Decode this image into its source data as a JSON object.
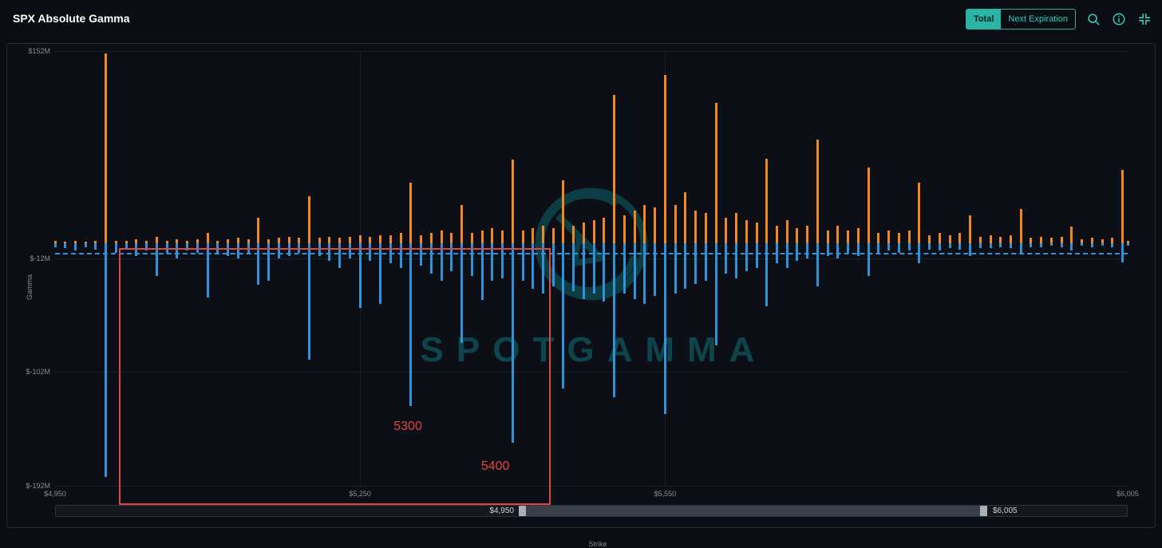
{
  "header": {
    "title": "SPX Absolute Gamma",
    "toggle": {
      "options": [
        "Total",
        "Next Expiration"
      ],
      "active": "Total"
    },
    "icons": [
      "search-icon",
      "info-icon",
      "collapse-icon"
    ],
    "accent_color": "#2bb3a3"
  },
  "watermark": {
    "text": "SPOTGAMMA",
    "color": "#0e454d"
  },
  "annotation": {
    "color": "#e04545",
    "x1_strike": 5013,
    "x2_strike": 5434,
    "top_value": -4,
    "labels": [
      {
        "text": "5300",
        "strike": 5297,
        "value": -145
      },
      {
        "text": "5400",
        "strike": 5383,
        "value": -177
      }
    ]
  },
  "scrollbar": {
    "left_label": "$4,950",
    "right_label": "$6,005"
  },
  "chart_data": {
    "type": "bar",
    "title": "SPX Absolute Gamma",
    "xlabel": "Strike",
    "ylabel": "Gamma",
    "xlim": [
      4950,
      6005
    ],
    "ylim": [
      -192,
      152
    ],
    "grid": true,
    "y_ticks": [
      {
        "label": "$152M",
        "value": 152
      },
      {
        "label": "$-12M",
        "value": -12
      },
      {
        "label": "$-102M",
        "value": -102
      },
      {
        "label": "$-192M",
        "value": -192
      }
    ],
    "x_ticks": [
      {
        "label": "$4,950",
        "value": 4950,
        "grid": false
      },
      {
        "label": "$5,250",
        "value": 5250,
        "grid": true
      },
      {
        "label": "$5,550",
        "value": 5550,
        "grid": true
      },
      {
        "label": "$6,005",
        "value": 6005,
        "grid": false
      }
    ],
    "reference_line": {
      "value": -8,
      "color": "#2e93d9"
    },
    "categories": [
      4950,
      4960,
      4970,
      4980,
      4990,
      5000,
      5010,
      5020,
      5030,
      5040,
      5050,
      5060,
      5070,
      5080,
      5090,
      5100,
      5110,
      5120,
      5130,
      5140,
      5150,
      5160,
      5170,
      5180,
      5190,
      5200,
      5210,
      5220,
      5230,
      5240,
      5250,
      5260,
      5270,
      5280,
      5290,
      5300,
      5310,
      5320,
      5330,
      5340,
      5350,
      5360,
      5370,
      5380,
      5390,
      5400,
      5410,
      5420,
      5430,
      5440,
      5450,
      5460,
      5470,
      5480,
      5490,
      5500,
      5510,
      5520,
      5530,
      5540,
      5550,
      5560,
      5570,
      5580,
      5590,
      5600,
      5610,
      5620,
      5630,
      5640,
      5650,
      5660,
      5670,
      5680,
      5690,
      5700,
      5710,
      5720,
      5730,
      5740,
      5750,
      5760,
      5770,
      5780,
      5790,
      5800,
      5810,
      5820,
      5830,
      5840,
      5850,
      5860,
      5870,
      5880,
      5890,
      5900,
      5910,
      5920,
      5930,
      5940,
      5950,
      5960,
      5970,
      5980,
      5990,
      6000,
      6005
    ],
    "series": [
      {
        "name": "Call Gamma",
        "color": "#f5871f",
        "values": [
          2,
          1,
          2,
          1,
          2,
          150,
          2,
          2,
          3,
          2,
          5,
          2,
          3,
          2,
          3,
          8,
          2,
          3,
          4,
          3,
          20,
          3,
          4,
          5,
          4,
          37,
          4,
          5,
          4,
          5,
          6,
          5,
          6,
          6,
          8,
          48,
          6,
          8,
          10,
          8,
          30,
          8,
          10,
          12,
          10,
          66,
          10,
          12,
          14,
          12,
          50,
          14,
          16,
          18,
          20,
          117,
          22,
          26,
          30,
          28,
          133,
          30,
          40,
          26,
          24,
          111,
          20,
          24,
          18,
          16,
          67,
          14,
          18,
          12,
          14,
          82,
          10,
          14,
          10,
          12,
          60,
          8,
          10,
          8,
          10,
          48,
          6,
          8,
          6,
          8,
          22,
          5,
          6,
          5,
          6,
          27,
          4,
          5,
          4,
          5,
          13,
          3,
          4,
          3,
          4,
          58,
          2
        ]
      },
      {
        "name": "Put Gamma",
        "color": "#2e93d9",
        "values": [
          -3,
          -4,
          -6,
          -3,
          -5,
          -185,
          -8,
          -5,
          -10,
          -6,
          -26,
          -8,
          -12,
          -6,
          -8,
          -43,
          -8,
          -10,
          -12,
          -8,
          -33,
          -30,
          -12,
          -10,
          -8,
          -92,
          -10,
          -14,
          -20,
          -12,
          -51,
          -14,
          -48,
          -16,
          -20,
          -129,
          -18,
          -24,
          -30,
          -22,
          -79,
          -26,
          -45,
          -30,
          -28,
          -158,
          -30,
          -36,
          -40,
          -34,
          -115,
          -38,
          -44,
          -40,
          -46,
          -122,
          -40,
          -44,
          -48,
          -42,
          -135,
          -40,
          -36,
          -32,
          -30,
          -81,
          -24,
          -28,
          -22,
          -20,
          -50,
          -16,
          -20,
          -14,
          -12,
          -34,
          -10,
          -12,
          -8,
          -10,
          -26,
          -8,
          -6,
          -8,
          -6,
          -16,
          -5,
          -6,
          -4,
          -5,
          -10,
          -4,
          -4,
          -3,
          -4,
          -8,
          -3,
          -3,
          -2,
          -3,
          -6,
          -2,
          -3,
          -2,
          -3,
          -15,
          -2
        ]
      }
    ]
  }
}
